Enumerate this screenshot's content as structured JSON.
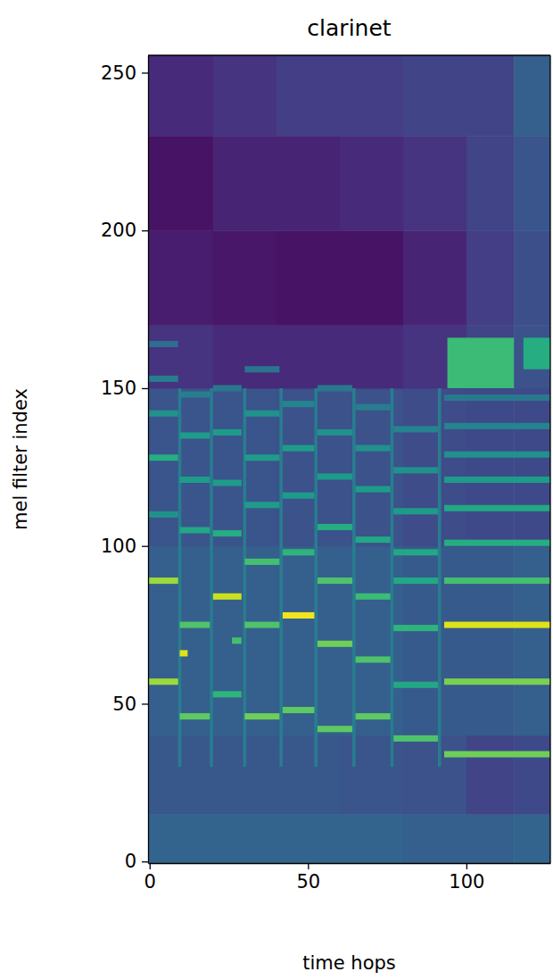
{
  "chart_data": {
    "type": "heatmap",
    "title": "clarinet",
    "x_label": "time hops",
    "y_label": "mel filter index",
    "xlim": [
      -0.5,
      126.5
    ],
    "ylim": [
      -0.5,
      255.5
    ],
    "xticks": [
      0,
      50,
      100
    ],
    "yticks": [
      0,
      50,
      100,
      150,
      200,
      250
    ],
    "zlim": [
      0,
      1
    ],
    "background": {
      "x_edges": [
        -0.5,
        20,
        40,
        60,
        80,
        100,
        115,
        126.5
      ],
      "y_edges": [
        -0.5,
        15,
        40,
        100,
        150,
        170,
        200,
        230,
        255.5
      ],
      "values": [
        [
          0.32,
          0.32,
          0.32,
          0.32,
          0.3,
          0.3,
          0.32
        ],
        [
          0.27,
          0.27,
          0.27,
          0.26,
          0.25,
          0.2,
          0.22
        ],
        [
          0.3,
          0.3,
          0.3,
          0.3,
          0.28,
          0.28,
          0.3
        ],
        [
          0.26,
          0.26,
          0.25,
          0.25,
          0.23,
          0.22,
          0.22
        ],
        [
          0.15,
          0.12,
          0.12,
          0.12,
          0.15,
          0.2,
          0.25
        ],
        [
          0.08,
          0.06,
          0.05,
          0.05,
          0.1,
          0.18,
          0.24
        ],
        [
          0.05,
          0.1,
          0.1,
          0.12,
          0.15,
          0.2,
          0.26
        ],
        [
          0.12,
          0.15,
          0.18,
          0.18,
          0.2,
          0.2,
          0.3
        ]
      ]
    },
    "cells": [
      {
        "x0": 9,
        "x1": 10,
        "y0": 30,
        "y1": 150,
        "value": 0.42
      },
      {
        "x0": 19,
        "x1": 20,
        "y0": 30,
        "y1": 150,
        "value": 0.42
      },
      {
        "x0": 29.5,
        "x1": 30.5,
        "y0": 30,
        "y1": 150,
        "value": 0.42
      },
      {
        "x0": 41,
        "x1": 42,
        "y0": 30,
        "y1": 150,
        "value": 0.42
      },
      {
        "x0": 52,
        "x1": 53,
        "y0": 30,
        "y1": 150,
        "value": 0.42
      },
      {
        "x0": 64,
        "x1": 65,
        "y0": 30,
        "y1": 150,
        "value": 0.42
      },
      {
        "x0": 76,
        "x1": 77,
        "y0": 30,
        "y1": 150,
        "value": 0.42
      },
      {
        "x0": 91,
        "x1": 92,
        "y0": 30,
        "y1": 150,
        "value": 0.42
      },
      {
        "x0": -0.5,
        "x1": 9,
        "y0": 56,
        "y1": 58,
        "value": 0.85
      },
      {
        "x0": -0.5,
        "x1": 9,
        "y0": 88,
        "y1": 90,
        "value": 0.85
      },
      {
        "x0": -0.5,
        "x1": 9,
        "y0": 109,
        "y1": 111,
        "value": 0.5
      },
      {
        "x0": -0.5,
        "x1": 9,
        "y0": 127,
        "y1": 129,
        "value": 0.62
      },
      {
        "x0": -0.5,
        "x1": 9,
        "y0": 141,
        "y1": 143,
        "value": 0.5
      },
      {
        "x0": -0.5,
        "x1": 9,
        "y0": 152,
        "y1": 154,
        "value": 0.42
      },
      {
        "x0": -0.5,
        "x1": 9,
        "y0": 163,
        "y1": 165,
        "value": 0.35
      },
      {
        "x0": 9.5,
        "x1": 19,
        "y0": 45,
        "y1": 47,
        "value": 0.75
      },
      {
        "x0": 9.5,
        "x1": 12,
        "y0": 65,
        "y1": 67,
        "value": 0.95
      },
      {
        "x0": 9.5,
        "x1": 19,
        "y0": 74,
        "y1": 76,
        "value": 0.72
      },
      {
        "x0": 9.5,
        "x1": 19,
        "y0": 104,
        "y1": 106,
        "value": 0.6
      },
      {
        "x0": 9.5,
        "x1": 19,
        "y0": 120,
        "y1": 122,
        "value": 0.55
      },
      {
        "x0": 9.5,
        "x1": 19,
        "y0": 134,
        "y1": 136,
        "value": 0.55
      },
      {
        "x0": 9.5,
        "x1": 19,
        "y0": 147,
        "y1": 149,
        "value": 0.42
      },
      {
        "x0": 20,
        "x1": 29,
        "y0": 52,
        "y1": 54,
        "value": 0.65
      },
      {
        "x0": 26,
        "x1": 29,
        "y0": 69,
        "y1": 71,
        "value": 0.7
      },
      {
        "x0": 20,
        "x1": 29,
        "y0": 83,
        "y1": 85,
        "value": 0.92
      },
      {
        "x0": 20,
        "x1": 29,
        "y0": 103,
        "y1": 105,
        "value": 0.62
      },
      {
        "x0": 20,
        "x1": 29,
        "y0": 119,
        "y1": 121,
        "value": 0.55
      },
      {
        "x0": 20,
        "x1": 29,
        "y0": 135,
        "y1": 137,
        "value": 0.55
      },
      {
        "x0": 20,
        "x1": 29,
        "y0": 149,
        "y1": 151,
        "value": 0.4
      },
      {
        "x0": 30,
        "x1": 41,
        "y0": 45,
        "y1": 47,
        "value": 0.78
      },
      {
        "x0": 30,
        "x1": 41,
        "y0": 74,
        "y1": 76,
        "value": 0.72
      },
      {
        "x0": 30,
        "x1": 41,
        "y0": 94,
        "y1": 96,
        "value": 0.7
      },
      {
        "x0": 30,
        "x1": 41,
        "y0": 112,
        "y1": 114,
        "value": 0.55
      },
      {
        "x0": 30,
        "x1": 41,
        "y0": 127,
        "y1": 129,
        "value": 0.55
      },
      {
        "x0": 30,
        "x1": 41,
        "y0": 141,
        "y1": 143,
        "value": 0.5
      },
      {
        "x0": 30,
        "x1": 41,
        "y0": 155,
        "y1": 157,
        "value": 0.38
      },
      {
        "x0": 42,
        "x1": 52,
        "y0": 47,
        "y1": 49,
        "value": 0.75
      },
      {
        "x0": 42,
        "x1": 52,
        "y0": 77,
        "y1": 79,
        "value": 0.98
      },
      {
        "x0": 42,
        "x1": 52,
        "y0": 97,
        "y1": 99,
        "value": 0.65
      },
      {
        "x0": 42,
        "x1": 52,
        "y0": 115,
        "y1": 117,
        "value": 0.55
      },
      {
        "x0": 42,
        "x1": 52,
        "y0": 130,
        "y1": 132,
        "value": 0.55
      },
      {
        "x0": 42,
        "x1": 52,
        "y0": 144,
        "y1": 146,
        "value": 0.45
      },
      {
        "x0": 53,
        "x1": 64,
        "y0": 41,
        "y1": 43,
        "value": 0.75
      },
      {
        "x0": 53,
        "x1": 64,
        "y0": 68,
        "y1": 70,
        "value": 0.78
      },
      {
        "x0": 53,
        "x1": 64,
        "y0": 88,
        "y1": 90,
        "value": 0.72
      },
      {
        "x0": 53,
        "x1": 64,
        "y0": 105,
        "y1": 107,
        "value": 0.62
      },
      {
        "x0": 53,
        "x1": 64,
        "y0": 121,
        "y1": 123,
        "value": 0.55
      },
      {
        "x0": 53,
        "x1": 64,
        "y0": 135,
        "y1": 137,
        "value": 0.5
      },
      {
        "x0": 53,
        "x1": 64,
        "y0": 149,
        "y1": 151,
        "value": 0.4
      },
      {
        "x0": 65,
        "x1": 76,
        "y0": 45,
        "y1": 47,
        "value": 0.75
      },
      {
        "x0": 65,
        "x1": 76,
        "y0": 63,
        "y1": 65,
        "value": 0.72
      },
      {
        "x0": 65,
        "x1": 76,
        "y0": 83,
        "y1": 85,
        "value": 0.68
      },
      {
        "x0": 65,
        "x1": 76,
        "y0": 101,
        "y1": 103,
        "value": 0.6
      },
      {
        "x0": 65,
        "x1": 76,
        "y0": 117,
        "y1": 119,
        "value": 0.55
      },
      {
        "x0": 65,
        "x1": 76,
        "y0": 130,
        "y1": 132,
        "value": 0.5
      },
      {
        "x0": 65,
        "x1": 76,
        "y0": 143,
        "y1": 145,
        "value": 0.42
      },
      {
        "x0": 77,
        "x1": 91,
        "y0": 38,
        "y1": 40,
        "value": 0.72
      },
      {
        "x0": 77,
        "x1": 91,
        "y0": 55,
        "y1": 57,
        "value": 0.6
      },
      {
        "x0": 77,
        "x1": 91,
        "y0": 73,
        "y1": 75,
        "value": 0.65
      },
      {
        "x0": 77,
        "x1": 91,
        "y0": 88,
        "y1": 90,
        "value": 0.6
      },
      {
        "x0": 77,
        "x1": 91,
        "y0": 97,
        "y1": 99,
        "value": 0.6
      },
      {
        "x0": 77,
        "x1": 91,
        "y0": 110,
        "y1": 112,
        "value": 0.55
      },
      {
        "x0": 77,
        "x1": 91,
        "y0": 123,
        "y1": 125,
        "value": 0.5
      },
      {
        "x0": 77,
        "x1": 91,
        "y0": 136,
        "y1": 138,
        "value": 0.45
      },
      {
        "x0": 93,
        "x1": 126.5,
        "y0": 33,
        "y1": 35,
        "value": 0.78
      },
      {
        "x0": 93,
        "x1": 126.5,
        "y0": 56,
        "y1": 58,
        "value": 0.8
      },
      {
        "x0": 93,
        "x1": 126.5,
        "y0": 74,
        "y1": 76,
        "value": 0.95
      },
      {
        "x0": 93,
        "x1": 126.5,
        "y0": 88,
        "y1": 90,
        "value": 0.7
      },
      {
        "x0": 93,
        "x1": 126.5,
        "y0": 100,
        "y1": 102,
        "value": 0.62
      },
      {
        "x0": 93,
        "x1": 126.5,
        "y0": 111,
        "y1": 113,
        "value": 0.6
      },
      {
        "x0": 93,
        "x1": 126.5,
        "y0": 120,
        "y1": 122,
        "value": 0.55
      },
      {
        "x0": 93,
        "x1": 126.5,
        "y0": 128,
        "y1": 130,
        "value": 0.5
      },
      {
        "x0": 93,
        "x1": 126.5,
        "y0": 137,
        "y1": 139,
        "value": 0.45
      },
      {
        "x0": 93,
        "x1": 126.5,
        "y0": 146,
        "y1": 148,
        "value": 0.4
      },
      {
        "x0": 94,
        "x1": 115,
        "y0": 150,
        "y1": 166,
        "value": 0.68
      },
      {
        "x0": 118,
        "x1": 126.5,
        "y0": 156,
        "y1": 166,
        "value": 0.62
      }
    ]
  }
}
